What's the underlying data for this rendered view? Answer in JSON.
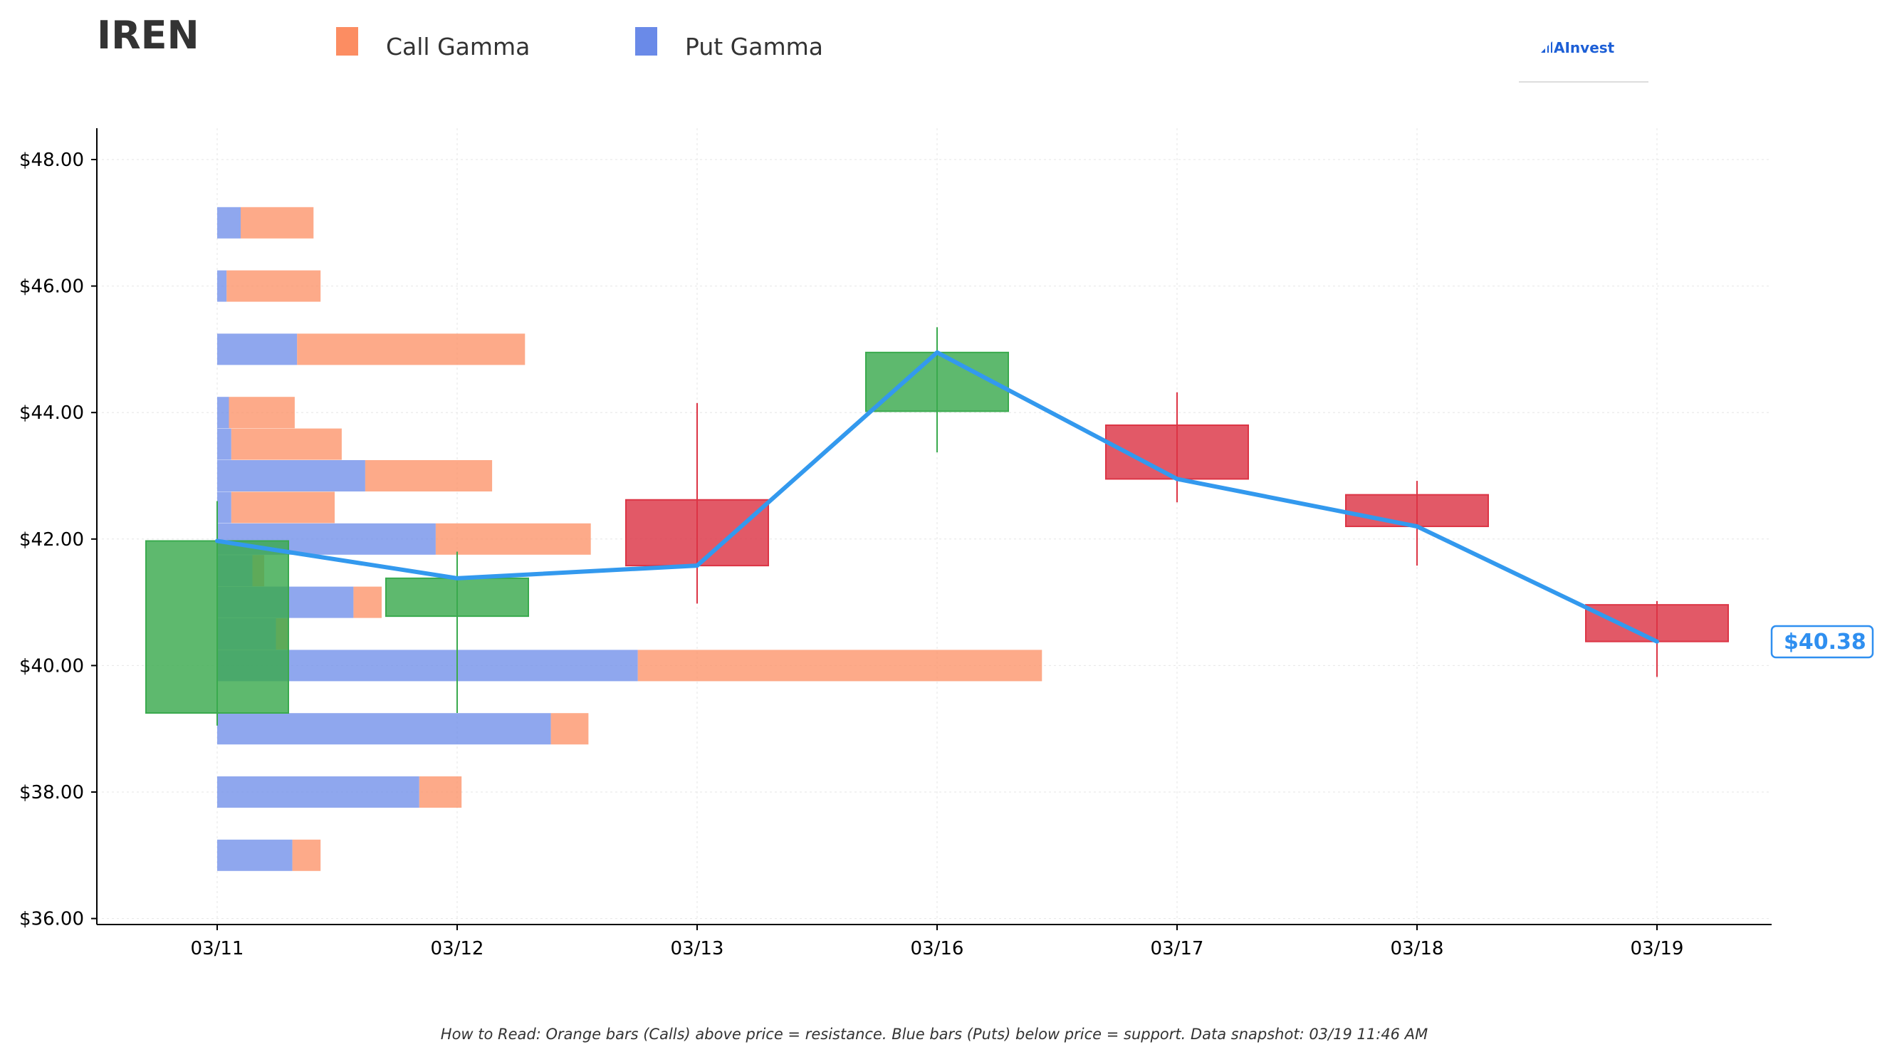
{
  "ticker": "IREN",
  "legend": [
    {
      "label": "Call Gamma",
      "color": "#fc8d62"
    },
    {
      "label": "Put Gamma",
      "color": "#6a8ae8"
    }
  ],
  "logo": {
    "text": "AInvest",
    "icon": "ainvest-logo-icon"
  },
  "footnote": "How to Read: Orange bars (Calls) above price = resistance. Blue bars (Puts) below price = support. Data snapshot: 03/19 11:46 AM",
  "current_price_label": "$40.38",
  "colors": {
    "call": "#fc8d62",
    "put": "#6a8ae8",
    "up": "#3aaa4e",
    "down": "#dc3545",
    "close_line": "#3399ee",
    "grid": "#e6e6e6"
  },
  "chart_data": [
    {
      "type": "candlestick",
      "x_categories": [
        "03/11",
        "03/12",
        "03/13",
        "03/16",
        "03/17",
        "03/18",
        "03/19"
      ],
      "ylim": [
        35.9,
        48.5
      ],
      "y_ticks": [
        36,
        38,
        40,
        42,
        44,
        46,
        48
      ],
      "y_tick_labels": [
        "$36.00",
        "$38.00",
        "$40.00",
        "$42.00",
        "$44.00",
        "$46.00",
        "$48.00"
      ],
      "grid": true,
      "candles": [
        {
          "date": "03/11",
          "open": 39.25,
          "high": 42.6,
          "low": 39.05,
          "close": 41.97
        },
        {
          "date": "03/12",
          "open": 40.78,
          "high": 41.8,
          "low": 39.25,
          "close": 41.38
        },
        {
          "date": "03/13",
          "open": 42.62,
          "high": 44.15,
          "low": 40.98,
          "close": 41.58
        },
        {
          "date": "03/16",
          "open": 44.02,
          "high": 45.35,
          "low": 43.37,
          "close": 44.95
        },
        {
          "date": "03/17",
          "open": 43.8,
          "high": 44.32,
          "low": 42.58,
          "close": 42.95
        },
        {
          "date": "03/18",
          "open": 42.7,
          "high": 42.92,
          "low": 41.58,
          "close": 42.2
        },
        {
          "date": "03/19",
          "open": 40.96,
          "high": 41.02,
          "low": 39.82,
          "close": 40.38
        }
      ],
      "close_line": [
        "03/11",
        "03/12",
        "03/13",
        "03/16",
        "03/17",
        "03/18",
        "03/19"
      ],
      "current_price": 40.38
    },
    {
      "type": "bar",
      "orientation": "horizontal",
      "stacked": true,
      "series_names": [
        "Call Gamma",
        "Put Gamma"
      ],
      "strikes": [
        37,
        38,
        39,
        40,
        40.5,
        41,
        41.5,
        42,
        42.5,
        43,
        43.5,
        44,
        45,
        46,
        47
      ],
      "put_gamma": [
        0.32,
        0.86,
        1.42,
        1.79,
        0.25,
        0.58,
        0.15,
        0.93,
        0.06,
        0.63,
        0.06,
        0.05,
        0.34,
        0.04,
        0.1
      ],
      "call_gamma": [
        0.12,
        0.18,
        0.16,
        1.72,
        0.05,
        0.12,
        0.05,
        0.66,
        0.44,
        0.54,
        0.47,
        0.28,
        0.97,
        0.4,
        0.31
      ]
    }
  ]
}
